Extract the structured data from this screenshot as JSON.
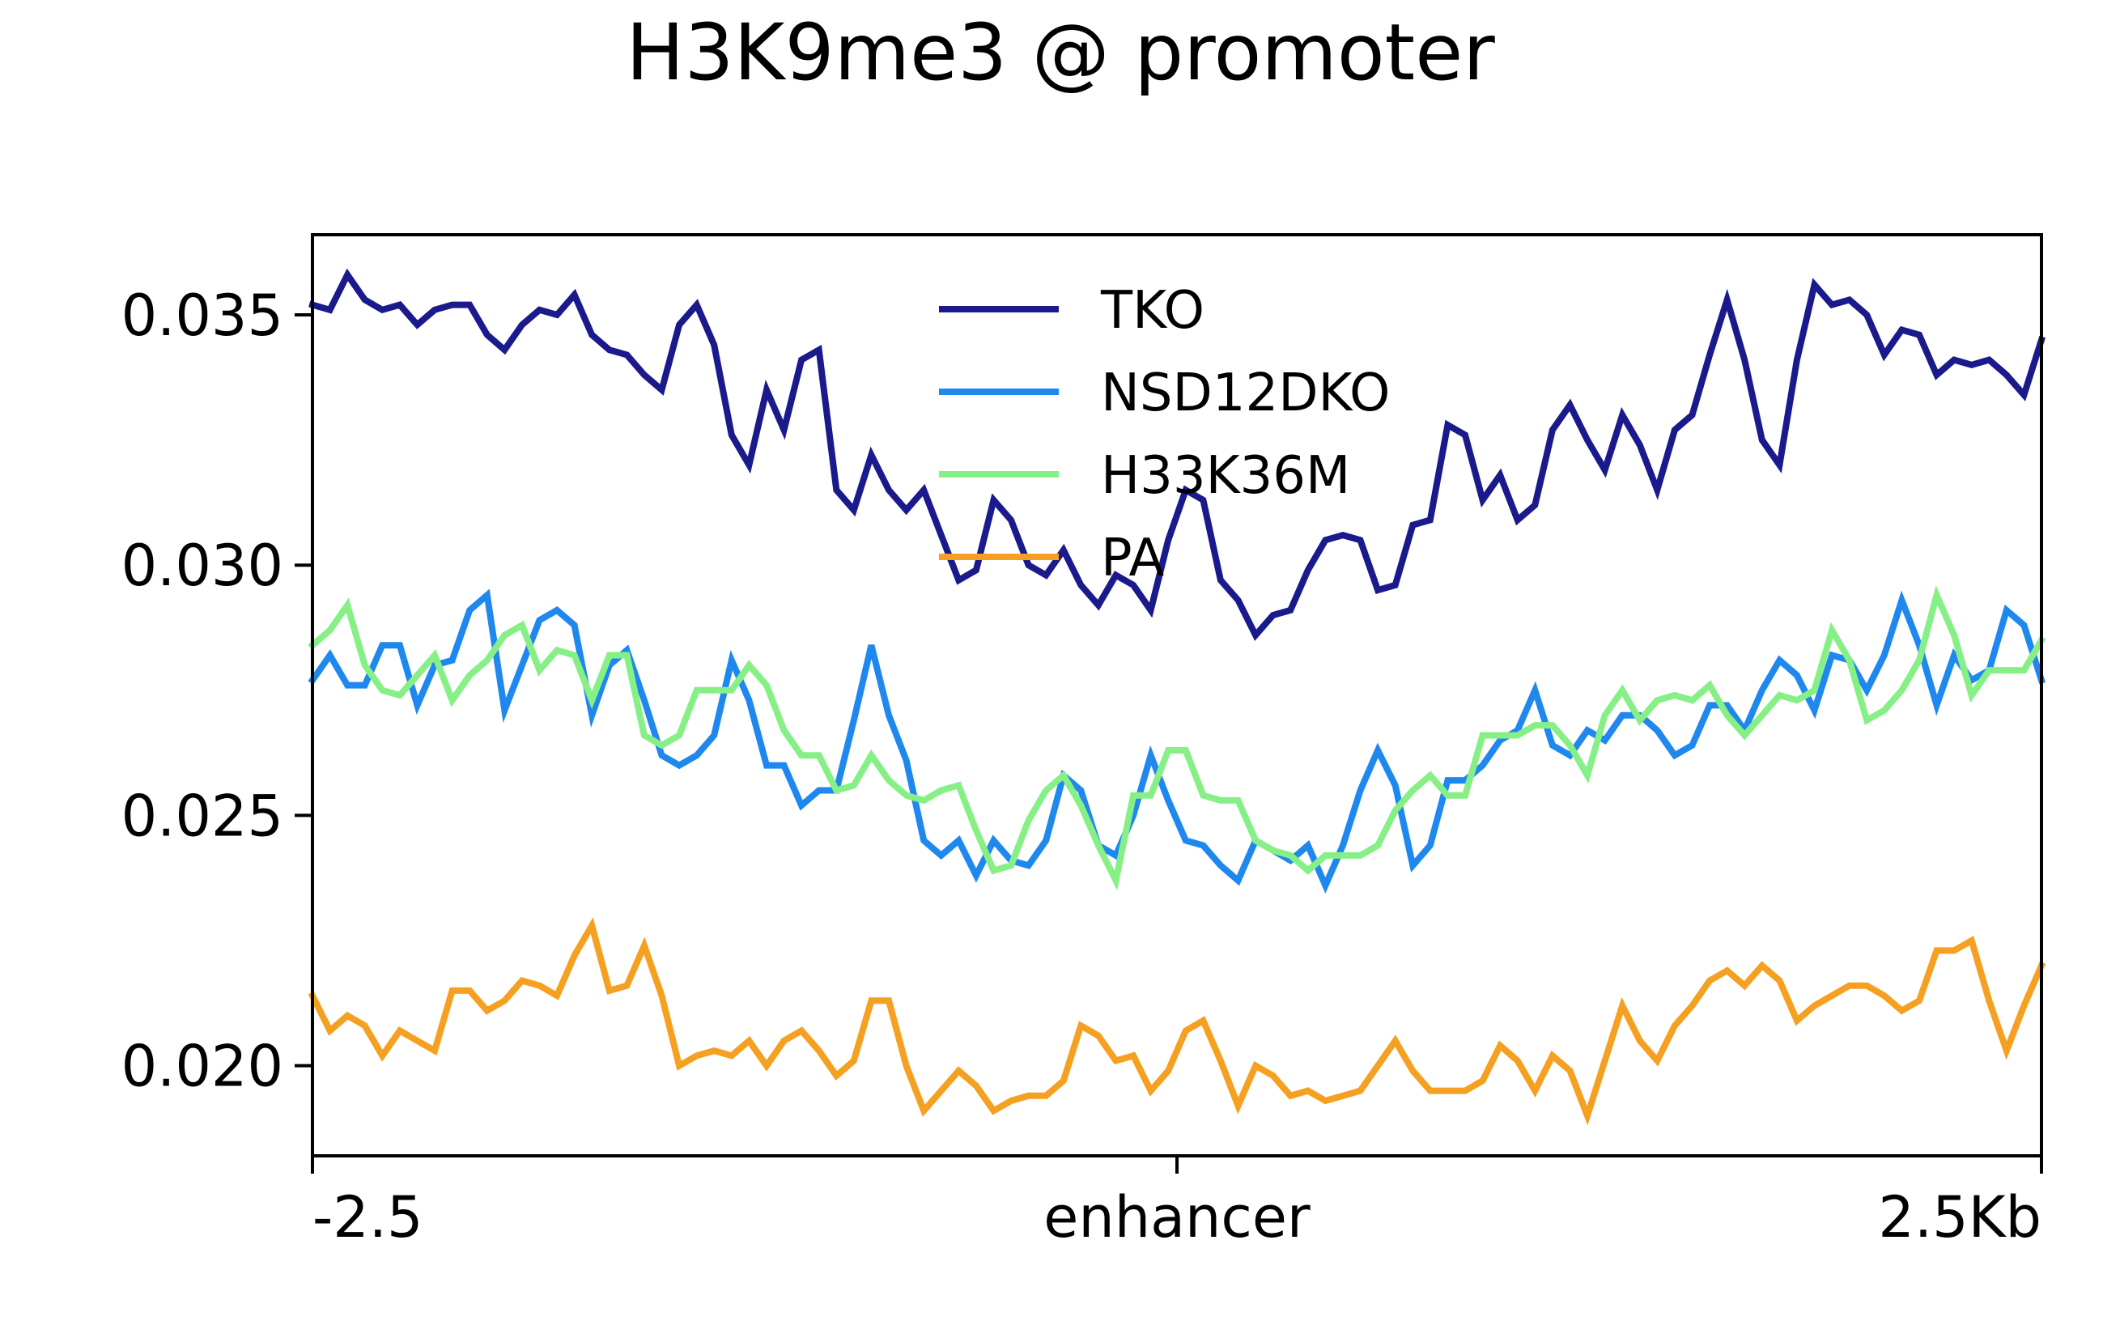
{
  "chart_data": {
    "type": "line",
    "title": "H3K9me3 @ promoter",
    "xlabel": "",
    "ylabel": "",
    "x_ticks": [
      "-2.5",
      "enhancer",
      "2.5Kb"
    ],
    "x_range": [
      -2.5,
      2.5
    ],
    "y_ticks": [
      "0.020",
      "0.025",
      "0.030",
      "0.035"
    ],
    "ylim": [
      0.0182,
      0.0366
    ],
    "grid": false,
    "legend_position": "top-center",
    "series": [
      {
        "name": "TKO",
        "color": "#1a1a8c",
        "values": [
          0.0352,
          0.0351,
          0.0358,
          0.0353,
          0.0351,
          0.0352,
          0.0348,
          0.0351,
          0.0352,
          0.0352,
          0.0346,
          0.0343,
          0.0348,
          0.0351,
          0.035,
          0.0354,
          0.0346,
          0.0343,
          0.0342,
          0.0338,
          0.0335,
          0.0348,
          0.0352,
          0.0344,
          0.0326,
          0.032,
          0.0335,
          0.0327,
          0.0341,
          0.0343,
          0.0315,
          0.0311,
          0.0322,
          0.0315,
          0.0311,
          0.0315,
          0.0306,
          0.0297,
          0.0299,
          0.0313,
          0.0309,
          0.03,
          0.0298,
          0.0303,
          0.0296,
          0.0292,
          0.0298,
          0.0296,
          0.0291,
          0.0305,
          0.0315,
          0.0313,
          0.0297,
          0.0293,
          0.0286,
          0.029,
          0.0291,
          0.0299,
          0.0305,
          0.0306,
          0.0305,
          0.0295,
          0.0296,
          0.0308,
          0.0309,
          0.0328,
          0.0326,
          0.0313,
          0.0318,
          0.0309,
          0.0312,
          0.0327,
          0.0332,
          0.0325,
          0.0319,
          0.033,
          0.0324,
          0.0315,
          0.0327,
          0.033,
          0.0342,
          0.0353,
          0.0341,
          0.0325,
          0.032,
          0.0341,
          0.0356,
          0.0352,
          0.0353,
          0.035,
          0.0342,
          0.0347,
          0.0346,
          0.0338,
          0.0341,
          0.034,
          0.0341,
          0.0338,
          0.0334,
          0.0345
        ]
      },
      {
        "name": "NSD12DKO",
        "color": "#1e88ee",
        "values": [
          0.0277,
          0.0282,
          0.0276,
          0.0276,
          0.0284,
          0.0284,
          0.0272,
          0.028,
          0.0281,
          0.0291,
          0.0294,
          0.0271,
          0.028,
          0.0289,
          0.0291,
          0.0288,
          0.027,
          0.028,
          0.0283,
          0.0273,
          0.0262,
          0.026,
          0.0262,
          0.0266,
          0.0281,
          0.0273,
          0.026,
          0.026,
          0.0252,
          0.0255,
          0.0255,
          0.0269,
          0.0284,
          0.027,
          0.0261,
          0.0245,
          0.0242,
          0.0245,
          0.0238,
          0.0245,
          0.0241,
          0.024,
          0.0245,
          0.0258,
          0.0255,
          0.0244,
          0.0242,
          0.025,
          0.0262,
          0.0253,
          0.0245,
          0.0244,
          0.024,
          0.0237,
          0.0245,
          0.0243,
          0.0241,
          0.0244,
          0.0236,
          0.0244,
          0.0255,
          0.0263,
          0.0256,
          0.024,
          0.0244,
          0.0257,
          0.0257,
          0.026,
          0.0265,
          0.0267,
          0.0275,
          0.0264,
          0.0262,
          0.0267,
          0.0265,
          0.027,
          0.027,
          0.0267,
          0.0262,
          0.0264,
          0.0272,
          0.0272,
          0.0267,
          0.0275,
          0.0281,
          0.0278,
          0.0271,
          0.0282,
          0.0281,
          0.0275,
          0.0282,
          0.0293,
          0.0284,
          0.0272,
          0.0282,
          0.0277,
          0.0279,
          0.0291,
          0.0288,
          0.0277
        ]
      },
      {
        "name": "H33K36M",
        "color": "#86f086",
        "values": [
          0.0284,
          0.0287,
          0.0292,
          0.028,
          0.0275,
          0.0274,
          0.0278,
          0.0282,
          0.0273,
          0.0278,
          0.0281,
          0.0286,
          0.0288,
          0.0279,
          0.0283,
          0.0282,
          0.0273,
          0.0282,
          0.0282,
          0.0266,
          0.0264,
          0.0266,
          0.0275,
          0.0275,
          0.0275,
          0.028,
          0.0276,
          0.0267,
          0.0262,
          0.0262,
          0.0255,
          0.0256,
          0.0262,
          0.0257,
          0.0254,
          0.0253,
          0.0255,
          0.0256,
          0.0247,
          0.0239,
          0.024,
          0.0249,
          0.0255,
          0.0258,
          0.0252,
          0.0244,
          0.0237,
          0.0254,
          0.0254,
          0.0263,
          0.0263,
          0.0254,
          0.0253,
          0.0253,
          0.0245,
          0.0243,
          0.0242,
          0.0239,
          0.0242,
          0.0242,
          0.0242,
          0.0244,
          0.0251,
          0.0255,
          0.0258,
          0.0254,
          0.0254,
          0.0266,
          0.0266,
          0.0266,
          0.0268,
          0.0268,
          0.0264,
          0.0258,
          0.027,
          0.0275,
          0.0269,
          0.0273,
          0.0274,
          0.0273,
          0.0276,
          0.027,
          0.0266,
          0.027,
          0.0274,
          0.0273,
          0.0275,
          0.0287,
          0.0281,
          0.0269,
          0.0271,
          0.0275,
          0.0281,
          0.0294,
          0.0286,
          0.0274,
          0.0279,
          0.0279,
          0.0279,
          0.0285
        ]
      },
      {
        "name": "PA",
        "color": "#f5a020",
        "values": [
          0.0214,
          0.0207,
          0.021,
          0.0208,
          0.0202,
          0.0207,
          0.0205,
          0.0203,
          0.0215,
          0.0215,
          0.0211,
          0.0213,
          0.0217,
          0.0216,
          0.0214,
          0.0222,
          0.0228,
          0.0215,
          0.0216,
          0.0224,
          0.0214,
          0.02,
          0.0202,
          0.0203,
          0.0202,
          0.0205,
          0.02,
          0.0205,
          0.0207,
          0.0203,
          0.0198,
          0.0201,
          0.0213,
          0.0213,
          0.02,
          0.0191,
          0.0195,
          0.0199,
          0.0196,
          0.0191,
          0.0193,
          0.0194,
          0.0194,
          0.0197,
          0.0208,
          0.0206,
          0.0201,
          0.0202,
          0.0195,
          0.0199,
          0.0207,
          0.0209,
          0.0201,
          0.0192,
          0.02,
          0.0198,
          0.0194,
          0.0195,
          0.0193,
          0.0194,
          0.0195,
          0.02,
          0.0205,
          0.0199,
          0.0195,
          0.0195,
          0.0195,
          0.0197,
          0.0204,
          0.0201,
          0.0195,
          0.0202,
          0.0199,
          0.019,
          0.0201,
          0.0212,
          0.0205,
          0.0201,
          0.0208,
          0.0212,
          0.0217,
          0.0219,
          0.0216,
          0.022,
          0.0217,
          0.0209,
          0.0212,
          0.0214,
          0.0216,
          0.0216,
          0.0214,
          0.0211,
          0.0213,
          0.0223,
          0.0223,
          0.0225,
          0.0213,
          0.0203,
          0.0212,
          0.022
        ]
      }
    ]
  }
}
